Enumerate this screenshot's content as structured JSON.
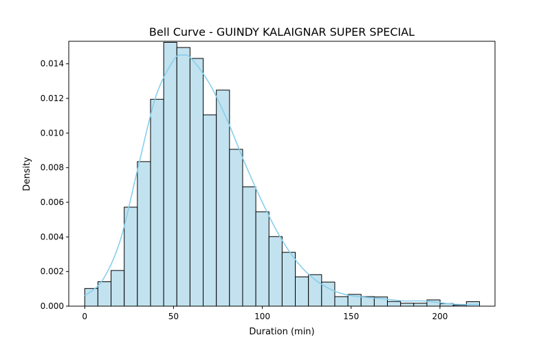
{
  "chart_data": {
    "type": "bar",
    "title": "Bell Curve - GUINDY KALAIGNAR SUPER SPECIAL",
    "xlabel": "Duration (min)",
    "ylabel": "Density",
    "xlim": [
      -9,
      231
    ],
    "ylim": [
      0,
      0.0153
    ],
    "xticks": [
      0,
      50,
      100,
      150,
      200
    ],
    "yticks": [
      0.0,
      0.002,
      0.004,
      0.006,
      0.008,
      0.01,
      0.012,
      0.014
    ],
    "xtick_labels": [
      "0",
      "50",
      "100",
      "150",
      "200"
    ],
    "ytick_labels": [
      "0.000",
      "0.002",
      "0.004",
      "0.006",
      "0.008",
      "0.010",
      "0.012",
      "0.014"
    ],
    "bin_edges": [
      0,
      7.41,
      14.82,
      22.23,
      29.64,
      37.05,
      44.46,
      51.87,
      59.28,
      66.69,
      74.1,
      81.51,
      88.92,
      96.33,
      103.74,
      111.15,
      118.56,
      125.97,
      133.38,
      140.79,
      148.2,
      155.61,
      163.02,
      170.43,
      177.84,
      185.25,
      192.66,
      200.07,
      207.48,
      214.89,
      222.3
    ],
    "values": [
      0.00102,
      0.00141,
      0.00206,
      0.00572,
      0.00835,
      0.01195,
      0.01524,
      0.01494,
      0.01431,
      0.01105,
      0.01248,
      0.00906,
      0.00689,
      0.00545,
      0.00402,
      0.00311,
      0.00169,
      0.00182,
      0.00139,
      0.00055,
      0.00068,
      0.00055,
      0.00053,
      0.00027,
      0.00017,
      0.00017,
      0.00036,
      0.00015,
      6e-05,
      0.00026
    ],
    "kde": {
      "x": [
        0,
        10,
        20,
        30,
        40,
        50,
        55,
        60,
        70,
        80,
        90,
        100,
        110,
        120,
        130,
        140,
        150,
        160,
        170,
        180,
        190,
        200,
        210,
        222
      ],
      "y": [
        0.0006,
        0.0015,
        0.0038,
        0.008,
        0.0121,
        0.0142,
        0.0145,
        0.0143,
        0.0129,
        0.0108,
        0.0083,
        0.006,
        0.004,
        0.0025,
        0.0015,
        0.0009,
        0.0006,
        0.0005,
        0.0004,
        0.0003,
        0.0003,
        0.0002,
        0.0001,
        0.0001
      ]
    },
    "grid": false,
    "colors": {
      "bar_fill": "#c2e2ef",
      "bar_edge": "#000000",
      "kde_line": "#87ceeb"
    }
  }
}
